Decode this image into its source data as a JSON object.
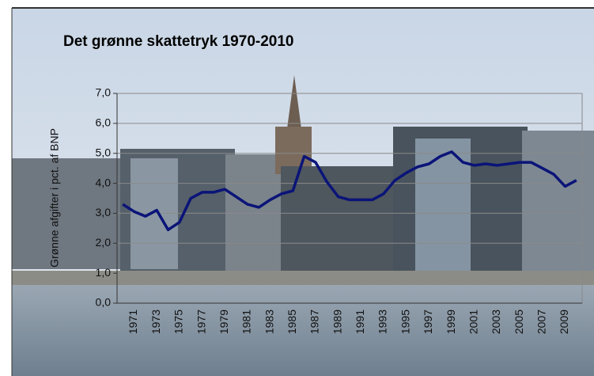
{
  "chart_data": {
    "type": "line",
    "title": "Det grønne skattetryk 1970-2010",
    "y_label": "Grønne afgifter i pct. af BNP",
    "categories": [
      null,
      "1971",
      null,
      "1973",
      null,
      "1975",
      null,
      "1977",
      null,
      "1979",
      null,
      "1981",
      null,
      "1983",
      null,
      "1985",
      null,
      "1987",
      null,
      "1989",
      null,
      "1991",
      null,
      "1993",
      null,
      "1995",
      null,
      "1997",
      null,
      "1999",
      null,
      "2001",
      null,
      "2003",
      null,
      "2005",
      null,
      "2007",
      null,
      "2009",
      null
    ],
    "series": [
      {
        "color": "#0a1478",
        "values": [
          3.3,
          3.06,
          2.9,
          3.1,
          2.45,
          2.7,
          3.5,
          3.7,
          3.7,
          3.8,
          3.55,
          3.3,
          3.2,
          3.45,
          3.65,
          3.75,
          4.9,
          4.7,
          4.05,
          3.55,
          3.45,
          3.45,
          3.45,
          3.65,
          4.1,
          4.35,
          4.55,
          4.65,
          4.9,
          5.05,
          4.7,
          4.6,
          4.65,
          4.6,
          4.65,
          4.7,
          4.7,
          4.5,
          4.3,
          3.9,
          4.1
        ]
      }
    ],
    "ylim": [
      0,
      7
    ],
    "yticks": [
      {
        "value": 0,
        "label": "0,0"
      },
      {
        "value": 1,
        "label": "1,0"
      },
      {
        "value": 2,
        "label": "2,0"
      },
      {
        "value": 3,
        "label": "3,0"
      },
      {
        "value": 4,
        "label": "4,0"
      },
      {
        "value": 5,
        "label": "5,0"
      },
      {
        "value": 6,
        "label": "6,0"
      },
      {
        "value": 7,
        "label": "7,0"
      }
    ],
    "grid": true
  }
}
